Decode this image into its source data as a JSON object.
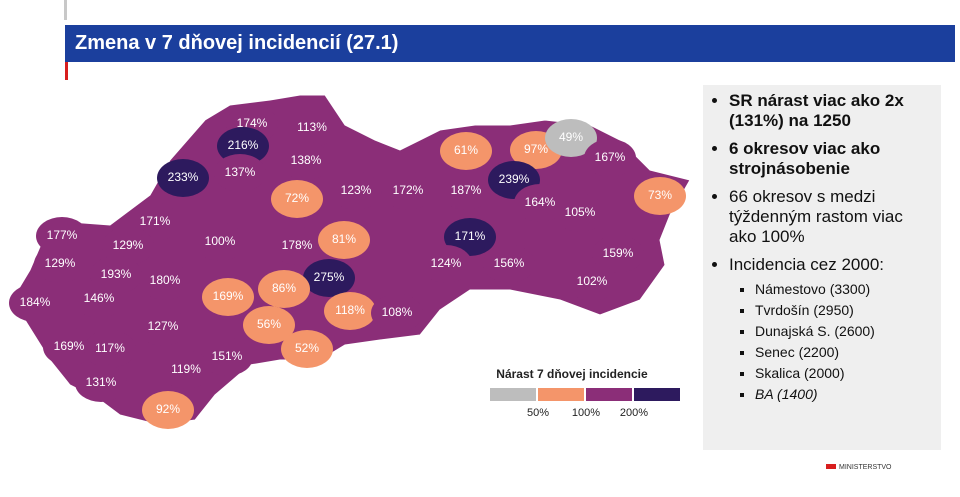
{
  "header": {
    "title": "Zmena v 7 dňovej incidencií (27.1)"
  },
  "map": {
    "districts": [
      {
        "label": "174%",
        "color": "#8b2e78"
      },
      {
        "label": "113%",
        "color": "#8b2e78"
      },
      {
        "label": "216%",
        "color": "#2d1a5e"
      },
      {
        "label": "138%",
        "color": "#8b2e78"
      },
      {
        "label": "137%",
        "color": "#8b2e78"
      },
      {
        "label": "233%",
        "color": "#2d1a5e"
      },
      {
        "label": "72%",
        "color": "#f4956a"
      },
      {
        "label": "123%",
        "color": "#8b2e78"
      },
      {
        "label": "172%",
        "color": "#8b2e78"
      },
      {
        "label": "187%",
        "color": "#8b2e78"
      },
      {
        "label": "61%",
        "color": "#f4956a"
      },
      {
        "label": "97%",
        "color": "#f4956a"
      },
      {
        "label": "49%",
        "color": "#bdbdbd"
      },
      {
        "label": "167%",
        "color": "#8b2e78"
      },
      {
        "label": "239%",
        "color": "#2d1a5e"
      },
      {
        "label": "73%",
        "color": "#f4956a"
      },
      {
        "label": "164%",
        "color": "#8b2e78"
      },
      {
        "label": "105%",
        "color": "#8b2e78"
      },
      {
        "label": "171%",
        "color": "#8b2e78"
      },
      {
        "label": "177%",
        "color": "#8b2e78"
      },
      {
        "label": "129%",
        "color": "#8b2e78"
      },
      {
        "label": "100%",
        "color": "#8b2e78"
      },
      {
        "label": "178%",
        "color": "#8b2e78"
      },
      {
        "label": "81%",
        "color": "#f4956a"
      },
      {
        "label": "171%",
        "color": "#2d1a5e"
      },
      {
        "label": "129%",
        "color": "#8b2e78"
      },
      {
        "label": "193%",
        "color": "#8b2e78"
      },
      {
        "label": "180%",
        "color": "#8b2e78"
      },
      {
        "label": "275%",
        "color": "#2d1a5e"
      },
      {
        "label": "86%",
        "color": "#f4956a"
      },
      {
        "label": "169%",
        "color": "#f4956a"
      },
      {
        "label": "124%",
        "color": "#8b2e78"
      },
      {
        "label": "156%",
        "color": "#8b2e78"
      },
      {
        "label": "159%",
        "color": "#8b2e78"
      },
      {
        "label": "102%",
        "color": "#8b2e78"
      },
      {
        "label": "184%",
        "color": "#8b2e78"
      },
      {
        "label": "146%",
        "color": "#8b2e78"
      },
      {
        "label": "118%",
        "color": "#f4956a"
      },
      {
        "label": "108%",
        "color": "#8b2e78"
      },
      {
        "label": "127%",
        "color": "#8b2e78"
      },
      {
        "label": "56%",
        "color": "#f4956a"
      },
      {
        "label": "169%",
        "color": "#8b2e78"
      },
      {
        "label": "117%",
        "color": "#8b2e78"
      },
      {
        "label": "52%",
        "color": "#f4956a"
      },
      {
        "label": "151%",
        "color": "#8b2e78"
      },
      {
        "label": "119%",
        "color": "#8b2e78"
      },
      {
        "label": "131%",
        "color": "#8b2e78"
      },
      {
        "label": "92%",
        "color": "#f4956a"
      }
    ],
    "legend": {
      "title": "Nárast 7 dňovej incidencie",
      "colors": [
        "#bdbdbd",
        "#f4956a",
        "#8b2e78",
        "#2d1a5e"
      ],
      "labels": [
        "50%",
        "100%",
        "200%"
      ]
    }
  },
  "panel": {
    "bullets": [
      {
        "text": "SR nárast viac ako 2x (131%) na 1250",
        "bold": true
      },
      {
        "text": "6 okresov viac ako strojnásobenie",
        "bold": true
      },
      {
        "text": "66 okresov s medzi týždenným rastom viac ako 100%",
        "bold": false
      },
      {
        "text": "Incidencia cez 2000:",
        "bold": false,
        "items": [
          "Námestovo (3300)",
          "Tvrdošín (2950)",
          "Dunajská S. (2600)",
          "Senec (2200)",
          "Skalica (2000)",
          "BA (1400)"
        ]
      }
    ]
  },
  "footer": {
    "logo": "MINISTERSTVO"
  }
}
